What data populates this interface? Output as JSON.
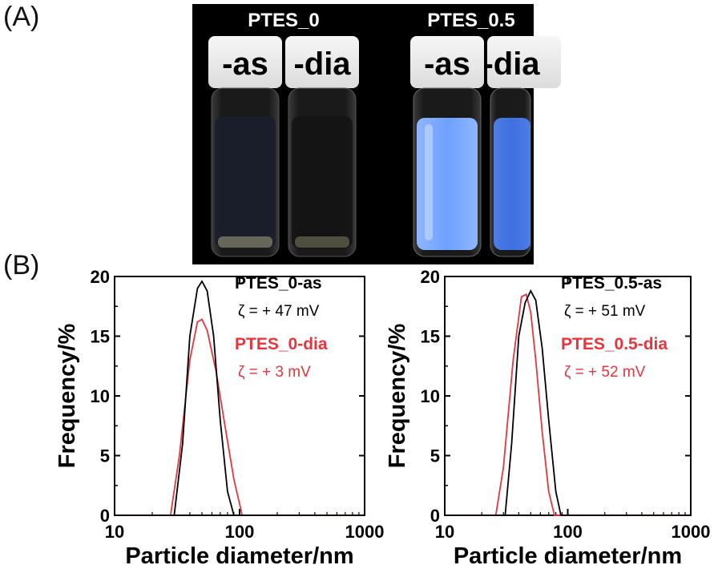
{
  "panel_a": {
    "label": "(A)",
    "group_left_title": "PTES_0",
    "group_right_title": "PTES_0.5",
    "vial_labels": [
      "-as",
      "-dia",
      "-as",
      "-dia"
    ]
  },
  "panel_b": {
    "label": "(B)"
  },
  "colors": {
    "black_series": "#000000",
    "red_series": "#e8343c",
    "photo_bg": "#000000",
    "blue_liquid": "#6b9cff"
  },
  "chart_data": [
    {
      "type": "line",
      "xscale": "log",
      "xlim": [
        10,
        1000
      ],
      "ylim": [
        0,
        20
      ],
      "xticks": [
        "10",
        "100",
        "1000"
      ],
      "yticks": [
        "0",
        "5",
        "10",
        "15",
        "20"
      ],
      "xlabel": "Particle diameter/nm",
      "ylabel": "Frequency/%",
      "series": [
        {
          "name": "PTES_0-as",
          "annotation": "ζ = + 47 mV",
          "color": "#000000",
          "x": [
            10,
            30,
            35,
            40,
            46,
            50,
            55,
            62,
            70,
            80,
            90,
            1000
          ],
          "y": [
            0,
            0,
            6,
            15,
            19,
            19.6,
            18.8,
            15,
            8,
            2,
            0,
            0
          ]
        },
        {
          "name": "PTES_0-dia",
          "annotation": "ζ = + 3 mV",
          "color": "#e8343c",
          "x": [
            10,
            28,
            33,
            40,
            46,
            50,
            55,
            65,
            75,
            90,
            105,
            1000
          ],
          "y": [
            0,
            0,
            5,
            13,
            16.2,
            16.4,
            15.5,
            12,
            8,
            3,
            0,
            0
          ]
        }
      ]
    },
    {
      "type": "line",
      "xscale": "log",
      "xlim": [
        10,
        1000
      ],
      "ylim": [
        0,
        20
      ],
      "xticks": [
        "10",
        "100",
        "1000"
      ],
      "yticks": [
        "0",
        "5",
        "10",
        "15",
        "20"
      ],
      "xlabel": "Particle diameter/nm",
      "ylabel": "Frequency/%",
      "series": [
        {
          "name": "PTES_0.5-as",
          "annotation": "ζ = + 51 mV",
          "color": "#000000",
          "x": [
            10,
            31,
            35,
            40,
            45,
            50,
            55,
            62,
            70,
            80,
            88,
            1000
          ],
          "y": [
            0,
            0,
            6,
            15,
            17.8,
            18.8,
            18,
            14,
            8,
            2,
            0,
            0
          ]
        },
        {
          "name": "PTES_0.5-dia",
          "annotation": "ζ = + 52 mV",
          "color": "#e8343c",
          "x": [
            10,
            26,
            30,
            36,
            42,
            46,
            50,
            55,
            62,
            70,
            78,
            1000
          ],
          "y": [
            0,
            0,
            4,
            13,
            18.3,
            18.5,
            17,
            13,
            7,
            2,
            0,
            0
          ]
        }
      ]
    }
  ]
}
